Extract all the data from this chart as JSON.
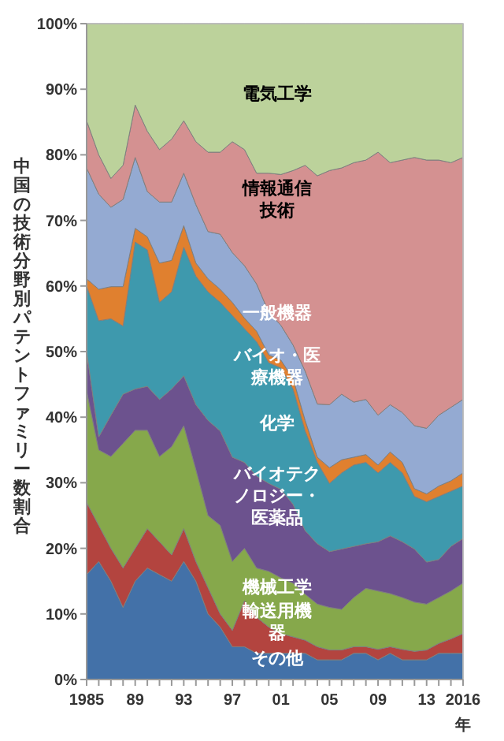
{
  "chart_data": {
    "type": "area",
    "stacked": true,
    "ylabel": "中国の技術分野別パテントファミリー数割合",
    "xlabel": "年",
    "x": [
      1985,
      1986,
      1987,
      1988,
      1989,
      1990,
      1991,
      1992,
      1993,
      1994,
      1995,
      1996,
      1997,
      1998,
      1999,
      2000,
      2001,
      2002,
      2003,
      2004,
      2005,
      2006,
      2007,
      2008,
      2009,
      2010,
      2011,
      2012,
      2013,
      2014,
      2015,
      2016
    ],
    "xlim": [
      1985,
      2016
    ],
    "xticks": [
      {
        "value": 1985,
        "label": "1985"
      },
      {
        "value": 1986,
        "label": null
      },
      {
        "value": 1987,
        "label": null
      },
      {
        "value": 1988,
        "label": null
      },
      {
        "value": 1989,
        "label": "89"
      },
      {
        "value": 1990,
        "label": null
      },
      {
        "value": 1991,
        "label": null
      },
      {
        "value": 1992,
        "label": null
      },
      {
        "value": 1993,
        "label": "93"
      },
      {
        "value": 1994,
        "label": null
      },
      {
        "value": 1995,
        "label": null
      },
      {
        "value": 1996,
        "label": null
      },
      {
        "value": 1997,
        "label": "97"
      },
      {
        "value": 1998,
        "label": null
      },
      {
        "value": 1999,
        "label": null
      },
      {
        "value": 2000,
        "label": null
      },
      {
        "value": 2001,
        "label": "01"
      },
      {
        "value": 2002,
        "label": null
      },
      {
        "value": 2003,
        "label": null
      },
      {
        "value": 2004,
        "label": null
      },
      {
        "value": 2005,
        "label": "05"
      },
      {
        "value": 2006,
        "label": null
      },
      {
        "value": 2007,
        "label": null
      },
      {
        "value": 2008,
        "label": null
      },
      {
        "value": 2009,
        "label": "09"
      },
      {
        "value": 2010,
        "label": null
      },
      {
        "value": 2011,
        "label": null
      },
      {
        "value": 2012,
        "label": null
      },
      {
        "value": 2013,
        "label": "13"
      },
      {
        "value": 2014,
        "label": null
      },
      {
        "value": 2015,
        "label": null
      },
      {
        "value": 2016,
        "label": "2016"
      }
    ],
    "ylim": [
      0,
      100
    ],
    "yticks": [
      {
        "value": 0,
        "label": "0%"
      },
      {
        "value": 10,
        "label": "10%"
      },
      {
        "value": 20,
        "label": "20%"
      },
      {
        "value": 30,
        "label": "30%"
      },
      {
        "value": 40,
        "label": "40%"
      },
      {
        "value": 50,
        "label": "50%"
      },
      {
        "value": 60,
        "label": "60%"
      },
      {
        "value": 70,
        "label": "70%"
      },
      {
        "value": 80,
        "label": "80%"
      },
      {
        "value": 90,
        "label": "90%"
      },
      {
        "value": 100,
        "label": "100%"
      }
    ],
    "series": [
      {
        "name": "その他",
        "color": "#4371a8",
        "values": [
          16,
          18,
          15,
          11,
          15,
          17,
          16,
          15,
          18,
          15,
          10,
          8,
          5,
          5,
          4,
          4,
          4,
          4,
          4,
          3,
          3,
          3,
          4,
          4,
          3,
          4,
          3,
          3,
          3,
          4,
          4,
          4
        ]
      },
      {
        "name": "輸送用機器",
        "color": "#b3443f",
        "values": [
          11,
          5.5,
          5,
          6,
          5,
          6,
          5,
          4,
          5,
          3,
          4,
          2,
          2.5,
          7,
          5.5,
          4,
          3,
          2.5,
          2,
          2,
          1.5,
          1.5,
          1,
          1,
          1.6,
          1,
          1.6,
          1.3,
          1.5,
          1.5,
          2.2,
          3
        ]
      },
      {
        "name": "機械工学",
        "color": "#86a84b",
        "values": [
          17,
          11.5,
          14,
          19,
          18,
          15,
          13,
          16.5,
          15.7,
          14,
          11,
          13.5,
          10.5,
          8,
          7.5,
          8.5,
          8.5,
          8.2,
          7,
          6.5,
          6.5,
          6.2,
          7.5,
          8.9,
          8.9,
          8.1,
          7.9,
          7.5,
          7,
          7,
          7.3,
          7.7
        ]
      },
      {
        "name": "バイオテクノロジー・医薬品",
        "color": "#6c528e",
        "values": [
          6,
          2,
          6.3,
          7.5,
          6.3,
          6.7,
          8.7,
          8.8,
          7.6,
          9.9,
          14.5,
          14.4,
          15.9,
          13.1,
          14,
          13.4,
          13.5,
          12,
          9.7,
          9.2,
          8.5,
          9.2,
          7.8,
          6.8,
          7.5,
          8.8,
          8.5,
          8.1,
          6.4,
          5.8,
          6.8,
          6.8
        ]
      },
      {
        "name": "化学",
        "color": "#3e99ad",
        "values": [
          10,
          17.7,
          14.7,
          10.4,
          22.4,
          20.8,
          14.8,
          14.8,
          19.6,
          19.6,
          19.6,
          19.6,
          21.6,
          20.4,
          20.5,
          18.4,
          18.5,
          17.6,
          15.2,
          12.4,
          10.4,
          11.6,
          12.4,
          12.4,
          10.5,
          11.2,
          10.5,
          8,
          9.2,
          9.6,
          8.4,
          8
        ]
      },
      {
        "name": "バイオ・医療機器",
        "color": "#e0802f",
        "values": [
          1.1,
          4.8,
          4.9,
          6,
          2.1,
          2,
          6,
          4.8,
          3.3,
          2,
          2,
          2,
          2,
          1.6,
          1.6,
          1.2,
          1.2,
          1.6,
          1.6,
          0.8,
          2.4,
          2,
          1.2,
          1.2,
          1.2,
          1.6,
          1.6,
          1.2,
          1.2,
          1.6,
          1.6,
          2
        ]
      },
      {
        "name": "一般機器",
        "color": "#94aad2",
        "values": [
          16.9,
          14.5,
          12.1,
          13.3,
          10.8,
          6.9,
          9.3,
          8.9,
          8,
          8.9,
          7.2,
          8.4,
          7.6,
          8,
          7.2,
          6.5,
          5.3,
          5.1,
          7.5,
          8.1,
          9.6,
          10,
          8.4,
          8.4,
          7.6,
          7.2,
          7.6,
          9.6,
          10,
          10.8,
          11.2,
          11.2
        ]
      },
      {
        "name": "情報通信技術",
        "color": "#d49191",
        "values": [
          7.2,
          6,
          4.4,
          5.2,
          8,
          9.2,
          8,
          9.6,
          8,
          9.6,
          12.1,
          12.5,
          16.9,
          17.7,
          16.9,
          21.2,
          23,
          26.6,
          31.4,
          34.8,
          35.7,
          34.5,
          36.5,
          36.5,
          40.1,
          36.9,
          38.5,
          40.9,
          40.9,
          38.9,
          37.3,
          36.9
        ]
      },
      {
        "name": "電気工学",
        "color": "#bcd29b",
        "values": [
          14.8,
          20,
          23.6,
          21.6,
          12.4,
          16.4,
          19.2,
          17.6,
          14.8,
          18,
          19.6,
          19.6,
          18,
          19.2,
          22.8,
          22.8,
          23,
          22.4,
          21.6,
          23.2,
          22.4,
          22,
          21.2,
          20.8,
          19.6,
          21.2,
          20.8,
          20.4,
          20.8,
          20.8,
          21.2,
          20.4
        ]
      }
    ]
  }
}
